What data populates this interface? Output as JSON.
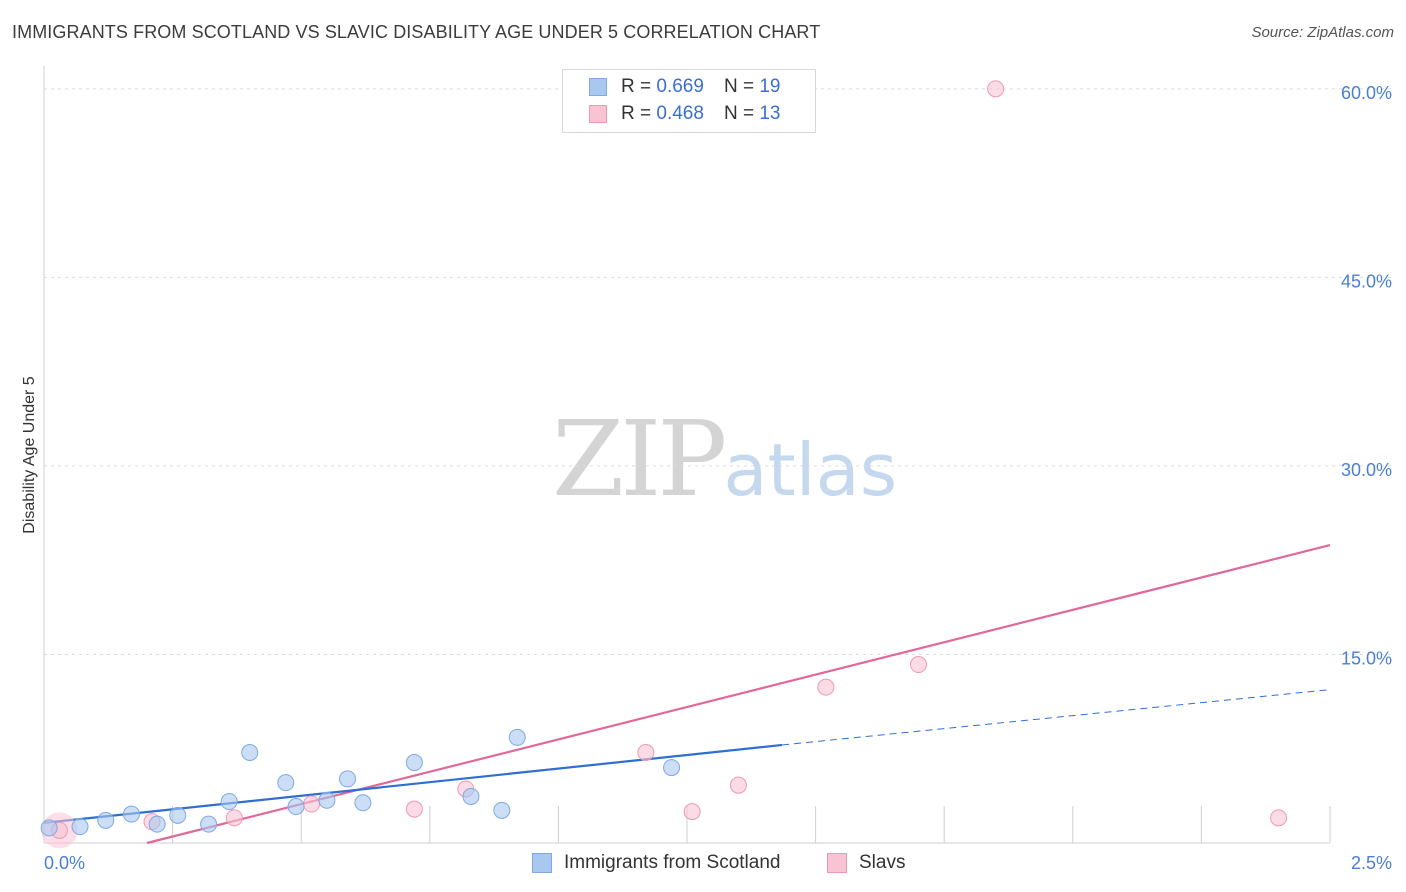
{
  "title": "IMMIGRANTS FROM SCOTLAND VS SLAVIC DISABILITY AGE UNDER 5 CORRELATION CHART",
  "source": "Source: ZipAtlas.com",
  "watermark": {
    "zip": "ZIP",
    "atlas": "atlas"
  },
  "legend": [
    {
      "r_label": "R =",
      "r_value": "0.669",
      "n_label": "N =",
      "n_value": "19",
      "color": "#a9c8f0",
      "border": "#7fa9e0"
    },
    {
      "r_label": "R =",
      "r_value": "0.468",
      "n_label": "N =",
      "n_value": "13",
      "color": "#f8c3d3",
      "border": "#ee99b5"
    }
  ],
  "chart_data": {
    "type": "scatter",
    "title": "IMMIGRANTS FROM SCOTLAND VS SLAVIC DISABILITY AGE UNDER 5 CORRELATION CHART",
    "xlabel": "",
    "ylabel": "Disability Age Under 5",
    "xlim": [
      0,
      2.5
    ],
    "ylim": [
      0,
      61.5
    ],
    "x_tick_labels": [
      "0.0%",
      "2.5%"
    ],
    "y_ticks": [
      15,
      30,
      45,
      60
    ],
    "y_tick_labels": [
      "15.0%",
      "30.0%",
      "45.0%",
      "60.0%"
    ],
    "grid": true,
    "series": [
      {
        "name": "Immigrants from Scotland",
        "color": "#a9c8f0",
        "stroke": "#7fa9e0",
        "line_color": "#2e6fd0",
        "points": [
          {
            "x": 0.01,
            "y": 1.2
          },
          {
            "x": 0.07,
            "y": 1.3
          },
          {
            "x": 0.12,
            "y": 1.8
          },
          {
            "x": 0.17,
            "y": 2.3
          },
          {
            "x": 0.22,
            "y": 1.5
          },
          {
            "x": 0.26,
            "y": 2.2
          },
          {
            "x": 0.32,
            "y": 1.5
          },
          {
            "x": 0.36,
            "y": 3.3
          },
          {
            "x": 0.4,
            "y": 7.2
          },
          {
            "x": 0.47,
            "y": 4.8
          },
          {
            "x": 0.49,
            "y": 2.9
          },
          {
            "x": 0.55,
            "y": 3.4
          },
          {
            "x": 0.59,
            "y": 5.1
          },
          {
            "x": 0.62,
            "y": 3.2
          },
          {
            "x": 0.72,
            "y": 6.4
          },
          {
            "x": 0.83,
            "y": 3.7
          },
          {
            "x": 0.89,
            "y": 2.6
          },
          {
            "x": 0.92,
            "y": 8.4
          },
          {
            "x": 1.22,
            "y": 6.0
          }
        ],
        "trend": {
          "x0": 0.0,
          "y0": 1.6,
          "x1": 1.435,
          "y1": 7.8,
          "x_dash_end": 2.5,
          "y_dash_end": 12.2
        }
      },
      {
        "name": "Slavs",
        "color": "#f8c3d3",
        "stroke": "#ee99b5",
        "line_color": "#e0689a",
        "points": [
          {
            "x": 0.03,
            "y": 1.0
          },
          {
            "x": 0.21,
            "y": 1.7
          },
          {
            "x": 0.37,
            "y": 2.0
          },
          {
            "x": 0.52,
            "y": 3.1
          },
          {
            "x": 0.72,
            "y": 2.7
          },
          {
            "x": 0.82,
            "y": 4.3
          },
          {
            "x": 1.17,
            "y": 7.2
          },
          {
            "x": 1.26,
            "y": 2.5
          },
          {
            "x": 1.35,
            "y": 4.6
          },
          {
            "x": 1.52,
            "y": 12.4
          },
          {
            "x": 1.7,
            "y": 14.2
          },
          {
            "x": 1.85,
            "y": 60.0
          },
          {
            "x": 2.4,
            "y": 2.0
          }
        ],
        "trend": {
          "x0": 0.2,
          "y0": 0.0,
          "x1": 2.5,
          "y1": 23.7
        }
      }
    ]
  }
}
